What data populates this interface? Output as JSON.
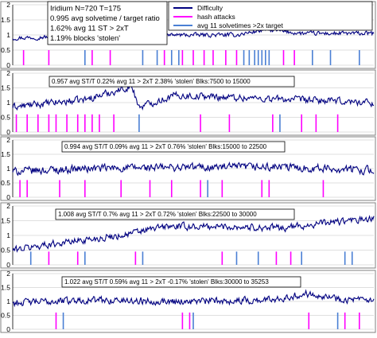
{
  "colors": {
    "difficulty": "#000080",
    "hash_attacks": "#ff00ff",
    "slow_solvetimes": "#4a7fd4",
    "plot_bg": "#ffffff",
    "panel_border": "#808080",
    "box_border": "#000000"
  },
  "legend": {
    "items": [
      {
        "label": "Difficulty",
        "color_key": "difficulty"
      },
      {
        "label": "hash attacks",
        "color_key": "hash_attacks"
      },
      {
        "label": "avg 11 solvetimes >2x target",
        "color_key": "slow_solvetimes"
      }
    ]
  },
  "chart_data": [
    {
      "type": "line",
      "y_ticks": [
        "0",
        "0.5",
        "1",
        "1.5",
        "2"
      ],
      "ylim": [
        0,
        2
      ],
      "grid": true,
      "annotation_lines": [
        "Iridium N=720 T=175",
        "0.995 avg solvetime / target ratio",
        "1.62% avg 11 ST > 2xT",
        "1.19% blocks 'stolen'"
      ],
      "legend_position": "top-right",
      "series": [
        {
          "name": "Difficulty",
          "color_key": "difficulty",
          "base": 1.0,
          "amplitude": 0.07,
          "trend": [
            [
              0,
              0.9
            ],
            [
              0.3,
              1.0
            ],
            [
              0.62,
              1.0
            ],
            [
              0.7,
              1.18
            ],
            [
              0.8,
              1.05
            ],
            [
              1.0,
              1.05
            ]
          ]
        },
        {
          "name": "hash attacks",
          "color_key": "hash_attacks",
          "bar_value": 0.5,
          "positions": [
            0.03,
            0.1,
            0.22,
            0.27,
            0.42,
            0.47,
            0.5,
            0.53,
            0.555,
            0.59,
            0.62,
            0.75,
            0.78
          ]
        },
        {
          "name": "avg 11 solvetimes >2x target",
          "color_key": "slow_solvetimes",
          "bar_value": 0.5,
          "positions": [
            0.2,
            0.36,
            0.4,
            0.44,
            0.46,
            0.64,
            0.655,
            0.67,
            0.68,
            0.69,
            0.7,
            0.71,
            0.83,
            0.88,
            0.96
          ]
        }
      ]
    },
    {
      "type": "line",
      "y_ticks": [
        "0",
        "0.5",
        "1",
        "1.5",
        "2"
      ],
      "ylim": [
        0,
        2
      ],
      "grid": true,
      "annotation_lines": [
        "0.957 avg ST/T    0.22% avg 11 > 2xT    2.38% 'stolen'    Blks:7500 to 15000"
      ],
      "series": [
        {
          "name": "Difficulty",
          "color_key": "difficulty",
          "base": 1.0,
          "amplitude": 0.12,
          "trend": [
            [
              0,
              0.85
            ],
            [
              0.2,
              1.1
            ],
            [
              0.33,
              1.55
            ],
            [
              0.35,
              0.85
            ],
            [
              0.45,
              1.25
            ],
            [
              1.0,
              1.0
            ]
          ]
        },
        {
          "name": "hash attacks",
          "color_key": "hash_attacks",
          "bar_value": 0.6,
          "positions": [
            0.01,
            0.04,
            0.07,
            0.1,
            0.12,
            0.15,
            0.18,
            0.2,
            0.22,
            0.24,
            0.28,
            0.52,
            0.6,
            0.72,
            0.8,
            0.84,
            0.9
          ]
        },
        {
          "name": "avg 11 solvetimes >2x target",
          "color_key": "slow_solvetimes",
          "bar_value": 0.6,
          "positions": [
            0.35,
            0.74
          ]
        }
      ]
    },
    {
      "type": "line",
      "y_ticks": [
        "0",
        "0.5",
        "1",
        "1.5",
        "2"
      ],
      "ylim": [
        0,
        2
      ],
      "grid": true,
      "annotation_lines": [
        "0.994 avg ST/T    0.09% avg 11 > 2xT    0.76% 'stolen'    Blks:15000 to 22500"
      ],
      "series": [
        {
          "name": "Difficulty",
          "color_key": "difficulty",
          "base": 1.0,
          "amplitude": 0.14,
          "trend": [
            [
              0,
              0.9
            ],
            [
              0.2,
              1.0
            ],
            [
              0.5,
              1.05
            ],
            [
              0.75,
              1.05
            ],
            [
              1.0,
              0.95
            ]
          ]
        },
        {
          "name": "hash attacks",
          "color_key": "hash_attacks",
          "bar_value": 0.6,
          "positions": [
            0.02,
            0.04,
            0.13,
            0.2,
            0.3,
            0.38,
            0.44,
            0.52,
            0.58,
            0.69,
            0.71,
            0.86
          ]
        },
        {
          "name": "avg 11 solvetimes >2x target",
          "color_key": "slow_solvetimes",
          "bar_value": 0.6,
          "positions": [
            0.54
          ]
        }
      ]
    },
    {
      "type": "line",
      "y_ticks": [
        "0",
        "0.5",
        "1",
        "1.5",
        "2"
      ],
      "ylim": [
        0,
        2
      ],
      "grid": true,
      "annotation_lines": [
        "1.008 avg ST/T    0.7% avg 11 > 2xT    0.72% 'stolen'    Blks:22500 to 30000"
      ],
      "series": [
        {
          "name": "Difficulty",
          "color_key": "difficulty",
          "base": 1.0,
          "amplitude": 0.12,
          "trend": [
            [
              0,
              0.5
            ],
            [
              0.1,
              0.7
            ],
            [
              0.3,
              1.0
            ],
            [
              0.42,
              1.3
            ],
            [
              0.6,
              1.3
            ],
            [
              0.75,
              1.25
            ],
            [
              0.88,
              1.45
            ],
            [
              1.0,
              1.55
            ]
          ]
        },
        {
          "name": "hash attacks",
          "color_key": "hash_attacks",
          "bar_value": 0.45,
          "positions": [
            0.1,
            0.18,
            0.34,
            0.58,
            0.73,
            0.77
          ]
        },
        {
          "name": "avg 11 solvetimes >2x target",
          "color_key": "slow_solvetimes",
          "bar_value": 0.45,
          "positions": [
            0.05,
            0.2,
            0.36,
            0.62,
            0.68,
            0.8,
            0.92,
            0.94
          ]
        }
      ]
    },
    {
      "type": "line",
      "y_ticks": [
        "0",
        "0.5",
        "1",
        "1.5",
        "2"
      ],
      "ylim": [
        0,
        2
      ],
      "grid": true,
      "annotation_lines": [
        "1.022 avg ST/T    0.59% avg 11 > 2xT    -0.17% 'stolen'    Blks:30000 to 35253"
      ],
      "series": [
        {
          "name": "Difficulty",
          "color_key": "difficulty",
          "base": 1.0,
          "amplitude": 0.13,
          "trend": [
            [
              0,
              0.95
            ],
            [
              0.2,
              1.05
            ],
            [
              0.5,
              1.0
            ],
            [
              0.7,
              1.05
            ],
            [
              0.83,
              1.3
            ],
            [
              0.9,
              1.1
            ],
            [
              1.0,
              1.0
            ]
          ]
        },
        {
          "name": "hash attacks",
          "color_key": "hash_attacks",
          "bar_value": 0.6,
          "positions": [
            0.12,
            0.47,
            0.49,
            0.82,
            0.92,
            0.96
          ]
        },
        {
          "name": "avg 11 solvetimes >2x target",
          "color_key": "slow_solvetimes",
          "bar_value": 0.6,
          "positions": [
            0.14,
            0.5,
            0.9
          ]
        }
      ]
    }
  ]
}
